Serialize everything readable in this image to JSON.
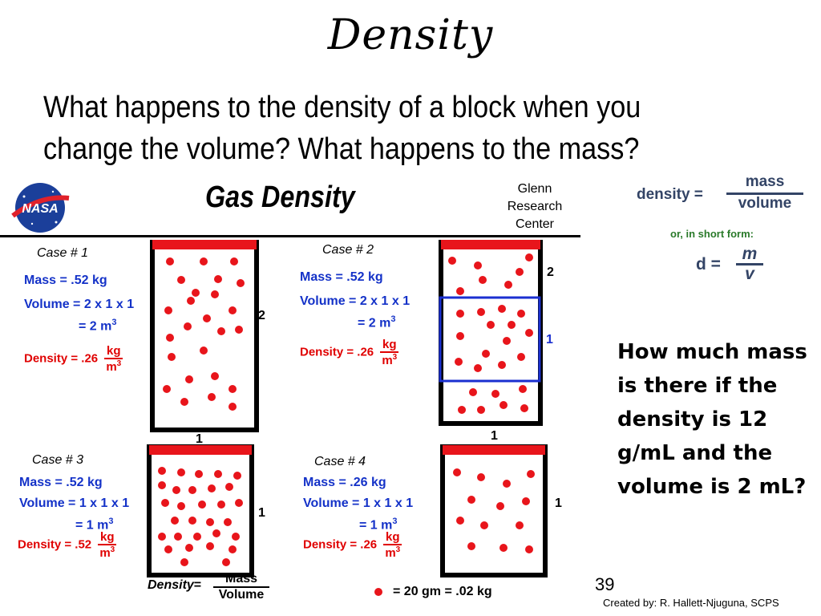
{
  "slide": {
    "title": "Density",
    "question_line1": "What happens to the density of a block when you",
    "question_line2": "change the volume?  What happens to the mass?",
    "side_question": "How much mass is there if the density is 12 g/mL and the volume is 2 mL?",
    "page_number": "39",
    "credit": "Created by: R. Hallett-Njuguna, SCPS"
  },
  "formula": {
    "density_label": "density =",
    "numerator": "mass",
    "denominator": "volume",
    "short_form": "or, in short form:",
    "d_label": "d =",
    "m": "m",
    "v": "v"
  },
  "diagram": {
    "logo_text": "NASA",
    "title": "Gas  Density",
    "org_line1": "Glenn",
    "org_line2": "Research",
    "org_line3": "Center",
    "cases": [
      {
        "label": "Case  # 1",
        "mass": "Mass =  .52  kg",
        "volume": "Volume = 2 x 1 x 1",
        "volume2": "= 2  m",
        "density": "Density = .26",
        "unit_top": "kg",
        "unit_bottom": "m",
        "height_label": "2",
        "width_label": "1"
      },
      {
        "label": "Case  # 2",
        "mass": "Mass =  .52  kg",
        "volume": "Volume = 2 x 1 x 1",
        "volume2": "= 2  m",
        "density": "Density = .26",
        "unit_top": "kg",
        "unit_bottom": "m",
        "height_label": "2",
        "inner_label": "1",
        "width_label": "1"
      },
      {
        "label": "Case  # 3",
        "mass": "Mass =  .52  kg",
        "volume": "Volume = 1 x 1 x 1",
        "volume2": "= 1  m",
        "density": "Density = .52",
        "unit_top": "kg",
        "unit_bottom": "m",
        "height_label": "1"
      },
      {
        "label": "Case  # 4",
        "mass": "Mass =  .26  kg",
        "volume": "Volume = 1 x 1 x 1",
        "volume2": "= 1  m",
        "density": "Density = .26",
        "unit_top": "kg",
        "unit_bottom": "m",
        "height_label": "1"
      }
    ],
    "superscript": "3",
    "bottom_density": "Density",
    "bottom_eq": "=",
    "bottom_num": "Mass",
    "bottom_den": "Volume",
    "legend": "=  20 gm  =  .02 kg",
    "colors": {
      "dot": "#e8151b",
      "text_blue": "#1432c8",
      "density_red": "#e00000",
      "box_blue": "#1a2fd0"
    }
  }
}
